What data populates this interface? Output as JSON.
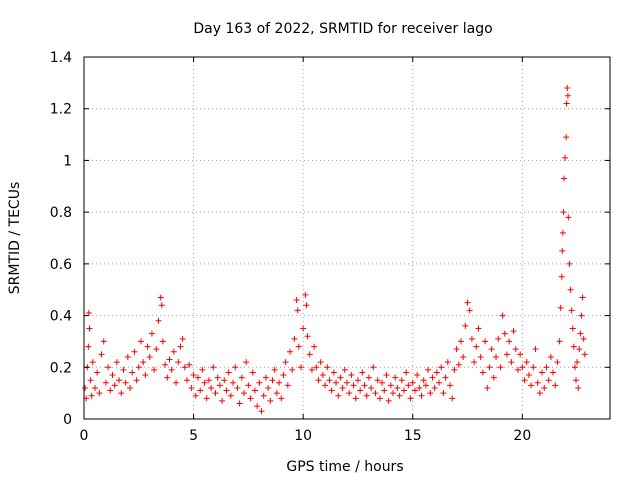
{
  "chart_data": {
    "type": "scatter",
    "title": "Day 163 of 2022, SRMTID for receiver lago",
    "xlabel": "GPS time / hours",
    "ylabel": "SRMTID / TECUs",
    "xlim": [
      0,
      24
    ],
    "ylim": [
      0,
      1.4
    ],
    "xticks": [
      0,
      5,
      10,
      15,
      20
    ],
    "xtick_labels": [
      "0",
      "5",
      "10",
      "15",
      "20"
    ],
    "yticks": [
      0,
      0.2,
      0.4,
      0.6,
      0.8,
      1,
      1.2,
      1.4
    ],
    "ytick_labels": [
      "0",
      "0.2",
      "0.4",
      "0.6",
      "0.8",
      "1",
      "1.2",
      "1.4"
    ],
    "grid": true,
    "marker": "+",
    "color": "#ff0000",
    "series": [
      {
        "name": "SRMTID",
        "points": [
          [
            0.05,
            0.12
          ],
          [
            0.1,
            0.08
          ],
          [
            0.15,
            0.2
          ],
          [
            0.2,
            0.28
          ],
          [
            0.22,
            0.41
          ],
          [
            0.25,
            0.35
          ],
          [
            0.3,
            0.15
          ],
          [
            0.35,
            0.09
          ],
          [
            0.4,
            0.22
          ],
          [
            0.5,
            0.12
          ],
          [
            0.6,
            0.18
          ],
          [
            0.7,
            0.1
          ],
          [
            0.8,
            0.25
          ],
          [
            0.9,
            0.3
          ],
          [
            1.0,
            0.14
          ],
          [
            1.1,
            0.2
          ],
          [
            1.2,
            0.11
          ],
          [
            1.3,
            0.17
          ],
          [
            1.4,
            0.13
          ],
          [
            1.5,
            0.22
          ],
          [
            1.6,
            0.15
          ],
          [
            1.7,
            0.1
          ],
          [
            1.8,
            0.19
          ],
          [
            1.9,
            0.14
          ],
          [
            2.0,
            0.24
          ],
          [
            2.1,
            0.12
          ],
          [
            2.2,
            0.18
          ],
          [
            2.3,
            0.26
          ],
          [
            2.4,
            0.15
          ],
          [
            2.5,
            0.2
          ],
          [
            2.6,
            0.3
          ],
          [
            2.7,
            0.22
          ],
          [
            2.8,
            0.17
          ],
          [
            2.9,
            0.28
          ],
          [
            3.0,
            0.24
          ],
          [
            3.1,
            0.33
          ],
          [
            3.2,
            0.19
          ],
          [
            3.3,
            0.27
          ],
          [
            3.4,
            0.38
          ],
          [
            3.5,
            0.47
          ],
          [
            3.55,
            0.44
          ],
          [
            3.6,
            0.3
          ],
          [
            3.7,
            0.21
          ],
          [
            3.8,
            0.16
          ],
          [
            3.9,
            0.23
          ],
          [
            4.0,
            0.19
          ],
          [
            4.1,
            0.26
          ],
          [
            4.2,
            0.14
          ],
          [
            4.3,
            0.22
          ],
          [
            4.4,
            0.28
          ],
          [
            4.5,
            0.31
          ],
          [
            4.6,
            0.2
          ],
          [
            4.7,
            0.15
          ],
          [
            4.8,
            0.21
          ],
          [
            4.9,
            0.12
          ],
          [
            5.0,
            0.17
          ],
          [
            5.1,
            0.09
          ],
          [
            5.2,
            0.16
          ],
          [
            5.3,
            0.11
          ],
          [
            5.4,
            0.19
          ],
          [
            5.5,
            0.14
          ],
          [
            5.6,
            0.08
          ],
          [
            5.7,
            0.15
          ],
          [
            5.8,
            0.12
          ],
          [
            5.9,
            0.2
          ],
          [
            6.0,
            0.1
          ],
          [
            6.1,
            0.16
          ],
          [
            6.2,
            0.13
          ],
          [
            6.3,
            0.07
          ],
          [
            6.4,
            0.15
          ],
          [
            6.5,
            0.11
          ],
          [
            6.6,
            0.18
          ],
          [
            6.7,
            0.09
          ],
          [
            6.8,
            0.14
          ],
          [
            6.9,
            0.2
          ],
          [
            7.0,
            0.12
          ],
          [
            7.1,
            0.06
          ],
          [
            7.2,
            0.16
          ],
          [
            7.3,
            0.1
          ],
          [
            7.4,
            0.22
          ],
          [
            7.5,
            0.13
          ],
          [
            7.6,
            0.08
          ],
          [
            7.7,
            0.18
          ],
          [
            7.8,
            0.11
          ],
          [
            7.9,
            0.05
          ],
          [
            8.0,
            0.14
          ],
          [
            8.1,
            0.03
          ],
          [
            8.2,
            0.09
          ],
          [
            8.3,
            0.16
          ],
          [
            8.4,
            0.12
          ],
          [
            8.5,
            0.07
          ],
          [
            8.6,
            0.15
          ],
          [
            8.7,
            0.19
          ],
          [
            8.8,
            0.1
          ],
          [
            8.9,
            0.14
          ],
          [
            9.0,
            0.08
          ],
          [
            9.1,
            0.17
          ],
          [
            9.2,
            0.22
          ],
          [
            9.3,
            0.13
          ],
          [
            9.4,
            0.26
          ],
          [
            9.5,
            0.19
          ],
          [
            9.6,
            0.31
          ],
          [
            9.7,
            0.46
          ],
          [
            9.75,
            0.42
          ],
          [
            9.8,
            0.28
          ],
          [
            9.9,
            0.2
          ],
          [
            10.0,
            0.35
          ],
          [
            10.1,
            0.48
          ],
          [
            10.15,
            0.44
          ],
          [
            10.2,
            0.32
          ],
          [
            10.3,
            0.25
          ],
          [
            10.4,
            0.19
          ],
          [
            10.5,
            0.28
          ],
          [
            10.6,
            0.2
          ],
          [
            10.7,
            0.15
          ],
          [
            10.8,
            0.22
          ],
          [
            10.9,
            0.17
          ],
          [
            11.0,
            0.13
          ],
          [
            11.1,
            0.2
          ],
          [
            11.2,
            0.15
          ],
          [
            11.3,
            0.11
          ],
          [
            11.4,
            0.18
          ],
          [
            11.5,
            0.14
          ],
          [
            11.6,
            0.09
          ],
          [
            11.7,
            0.16
          ],
          [
            11.8,
            0.12
          ],
          [
            11.9,
            0.19
          ],
          [
            12.0,
            0.14
          ],
          [
            12.1,
            0.1
          ],
          [
            12.2,
            0.17
          ],
          [
            12.3,
            0.13
          ],
          [
            12.4,
            0.08
          ],
          [
            12.5,
            0.15
          ],
          [
            12.6,
            0.11
          ],
          [
            12.7,
            0.18
          ],
          [
            12.8,
            0.13
          ],
          [
            12.9,
            0.09
          ],
          [
            13.0,
            0.16
          ],
          [
            13.1,
            0.12
          ],
          [
            13.2,
            0.2
          ],
          [
            13.3,
            0.1
          ],
          [
            13.4,
            0.15
          ],
          [
            13.5,
            0.08
          ],
          [
            13.6,
            0.14
          ],
          [
            13.7,
            0.11
          ],
          [
            13.8,
            0.17
          ],
          [
            13.9,
            0.07
          ],
          [
            14.0,
            0.13
          ],
          [
            14.1,
            0.1
          ],
          [
            14.2,
            0.16
          ],
          [
            14.3,
            0.12
          ],
          [
            14.4,
            0.09
          ],
          [
            14.5,
            0.15
          ],
          [
            14.6,
            0.11
          ],
          [
            14.7,
            0.18
          ],
          [
            14.8,
            0.13
          ],
          [
            14.9,
            0.08
          ],
          [
            15.0,
            0.14
          ],
          [
            15.1,
            0.11
          ],
          [
            15.2,
            0.17
          ],
          [
            15.3,
            0.12
          ],
          [
            15.4,
            0.09
          ],
          [
            15.5,
            0.15
          ],
          [
            15.6,
            0.13
          ],
          [
            15.7,
            0.19
          ],
          [
            15.8,
            0.1
          ],
          [
            15.9,
            0.16
          ],
          [
            16.0,
            0.12
          ],
          [
            16.1,
            0.18
          ],
          [
            16.2,
            0.14
          ],
          [
            16.3,
            0.2
          ],
          [
            16.4,
            0.1
          ],
          [
            16.5,
            0.16
          ],
          [
            16.6,
            0.22
          ],
          [
            16.7,
            0.13
          ],
          [
            16.8,
            0.08
          ],
          [
            16.9,
            0.19
          ],
          [
            17.0,
            0.27
          ],
          [
            17.1,
            0.21
          ],
          [
            17.2,
            0.3
          ],
          [
            17.3,
            0.24
          ],
          [
            17.4,
            0.36
          ],
          [
            17.5,
            0.45
          ],
          [
            17.6,
            0.42
          ],
          [
            17.7,
            0.31
          ],
          [
            17.8,
            0.22
          ],
          [
            17.9,
            0.28
          ],
          [
            18.0,
            0.35
          ],
          [
            18.1,
            0.24
          ],
          [
            18.2,
            0.18
          ],
          [
            18.3,
            0.3
          ],
          [
            18.4,
            0.12
          ],
          [
            18.5,
            0.2
          ],
          [
            18.6,
            0.27
          ],
          [
            18.7,
            0.16
          ],
          [
            18.8,
            0.24
          ],
          [
            18.9,
            0.31
          ],
          [
            19.0,
            0.2
          ],
          [
            19.1,
            0.4
          ],
          [
            19.2,
            0.33
          ],
          [
            19.3,
            0.25
          ],
          [
            19.4,
            0.3
          ],
          [
            19.5,
            0.22
          ],
          [
            19.6,
            0.34
          ],
          [
            19.7,
            0.27
          ],
          [
            19.8,
            0.19
          ],
          [
            19.9,
            0.25
          ],
          [
            20.0,
            0.2
          ],
          [
            20.1,
            0.15
          ],
          [
            20.2,
            0.22
          ],
          [
            20.3,
            0.17
          ],
          [
            20.4,
            0.13
          ],
          [
            20.5,
            0.2
          ],
          [
            20.6,
            0.27
          ],
          [
            20.7,
            0.14
          ],
          [
            20.8,
            0.1
          ],
          [
            20.9,
            0.18
          ],
          [
            21.0,
            0.12
          ],
          [
            21.1,
            0.2
          ],
          [
            21.2,
            0.15
          ],
          [
            21.3,
            0.24
          ],
          [
            21.4,
            0.18
          ],
          [
            21.5,
            0.13
          ],
          [
            21.6,
            0.22
          ],
          [
            21.7,
            0.3
          ],
          [
            21.75,
            0.43
          ],
          [
            21.8,
            0.55
          ],
          [
            21.82,
            0.65
          ],
          [
            21.85,
            0.72
          ],
          [
            21.88,
            0.8
          ],
          [
            21.9,
            0.93
          ],
          [
            21.95,
            1.01
          ],
          [
            22.0,
            1.09
          ],
          [
            22.02,
            1.22
          ],
          [
            22.05,
            1.28
          ],
          [
            22.08,
            1.25
          ],
          [
            22.1,
            0.78
          ],
          [
            22.15,
            0.6
          ],
          [
            22.2,
            0.5
          ],
          [
            22.25,
            0.42
          ],
          [
            22.3,
            0.35
          ],
          [
            22.35,
            0.28
          ],
          [
            22.4,
            0.2
          ],
          [
            22.45,
            0.15
          ],
          [
            22.5,
            0.22
          ],
          [
            22.55,
            0.12
          ],
          [
            22.6,
            0.27
          ],
          [
            22.65,
            0.33
          ],
          [
            22.7,
            0.4
          ],
          [
            22.75,
            0.47
          ],
          [
            22.8,
            0.31
          ],
          [
            22.85,
            0.25
          ]
        ]
      }
    ]
  }
}
